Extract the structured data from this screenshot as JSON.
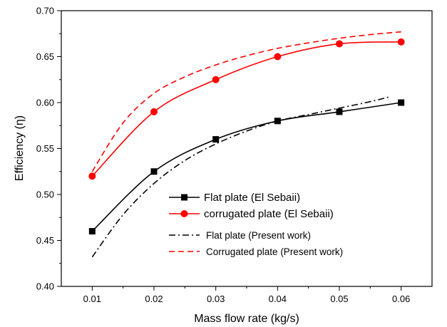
{
  "chart_data": {
    "type": "line",
    "title": "",
    "xlabel": "Mass flow rate (kg/s)",
    "ylabel": "Efficiency (η)",
    "xlim": [
      0.005,
      0.065
    ],
    "ylim": [
      0.4,
      0.7
    ],
    "xticks": [
      "0.01",
      "0.02",
      "0.03",
      "0.04",
      "0.05",
      "0.06"
    ],
    "yticks": [
      "0.40",
      "0.45",
      "0.50",
      "0.55",
      "0.60",
      "0.65",
      "0.70"
    ],
    "grid": false,
    "legend_position": "lower-right",
    "series": [
      {
        "name": "Flat plate (El Sebaii)",
        "style": "solid-line-square-markers",
        "color": "#000000",
        "x": [
          0.01,
          0.02,
          0.03,
          0.04,
          0.05,
          0.06
        ],
        "y": [
          0.46,
          0.525,
          0.56,
          0.58,
          0.59,
          0.6
        ]
      },
      {
        "name": "corrugated plate (El Sebaii)",
        "style": "solid-line-circle-markers",
        "color": "#ff0000",
        "x": [
          0.01,
          0.02,
          0.03,
          0.04,
          0.05,
          0.06
        ],
        "y": [
          0.52,
          0.59,
          0.625,
          0.65,
          0.664,
          0.666
        ]
      },
      {
        "name": "Flat plate (Present work)",
        "style": "dash-dot-line",
        "color": "#000000",
        "x": [
          0.01,
          0.015,
          0.02,
          0.025,
          0.03,
          0.035,
          0.04,
          0.045,
          0.05,
          0.055,
          0.058
        ],
        "y": [
          0.432,
          0.478,
          0.512,
          0.537,
          0.555,
          0.569,
          0.58,
          0.587,
          0.594,
          0.601,
          0.606
        ]
      },
      {
        "name": "Corrugated plate (Present work)",
        "style": "dashed-line",
        "color": "#ff0000",
        "x": [
          0.01,
          0.015,
          0.02,
          0.025,
          0.03,
          0.035,
          0.04,
          0.045,
          0.05,
          0.055,
          0.06
        ],
        "y": [
          0.525,
          0.578,
          0.61,
          0.628,
          0.641,
          0.651,
          0.659,
          0.665,
          0.67,
          0.674,
          0.677
        ]
      }
    ]
  }
}
